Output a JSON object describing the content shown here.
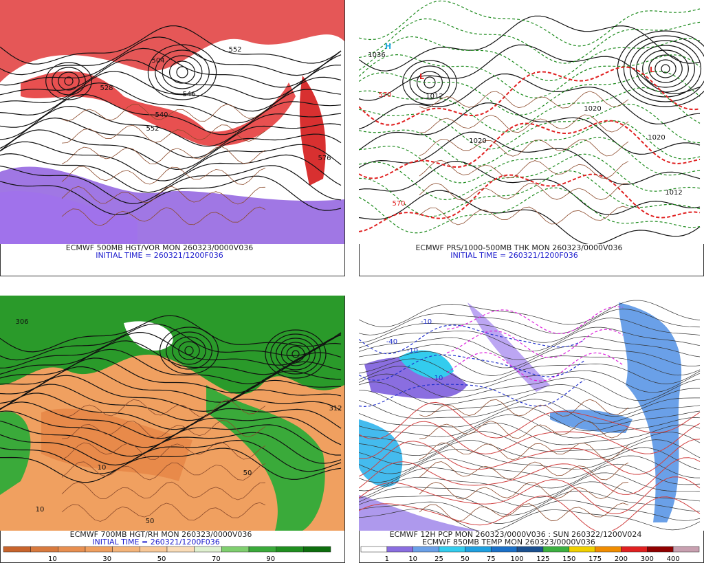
{
  "panels": [
    {
      "caption": "ECMWF 500MB HGT/VOR MON 260323/0000V036",
      "initial_time": "INITIAL TIME = 260321/1200F036",
      "contour_labels": [
        "528",
        "546",
        "540",
        "552",
        "576",
        "504",
        "552"
      ]
    },
    {
      "caption": "ECMWF PRS/1000-500MB THK MON 260323/0000V036",
      "initial_time": "INITIAL TIME = 260321/1200F036",
      "contour_labels": [
        "1036",
        "1012",
        "1020",
        "1020",
        "1012",
        "570",
        "570",
        "1020"
      ]
    },
    {
      "caption": "ECMWF 700MB HGT/RH MON 260323/0000V036",
      "initial_time": "INITIAL TIME = 260321/1200F036",
      "contour_labels": [
        "306",
        "312",
        "50",
        "10",
        "10",
        "50"
      ],
      "colorbar_labels": [
        10,
        30,
        50,
        70,
        90
      ]
    },
    {
      "caption": "ECMWF 12H PCP MON 260323/0000V036 : SUN 260322/1200V024",
      "subcaption": "ECMWF 850MB TEMP MON 260323/0000V036",
      "contour_labels": [
        "-10",
        "-10",
        "-40",
        "10"
      ],
      "colorbar_labels": [
        1,
        10,
        25,
        50,
        75,
        100,
        125,
        150,
        175,
        200,
        300,
        400
      ]
    }
  ]
}
